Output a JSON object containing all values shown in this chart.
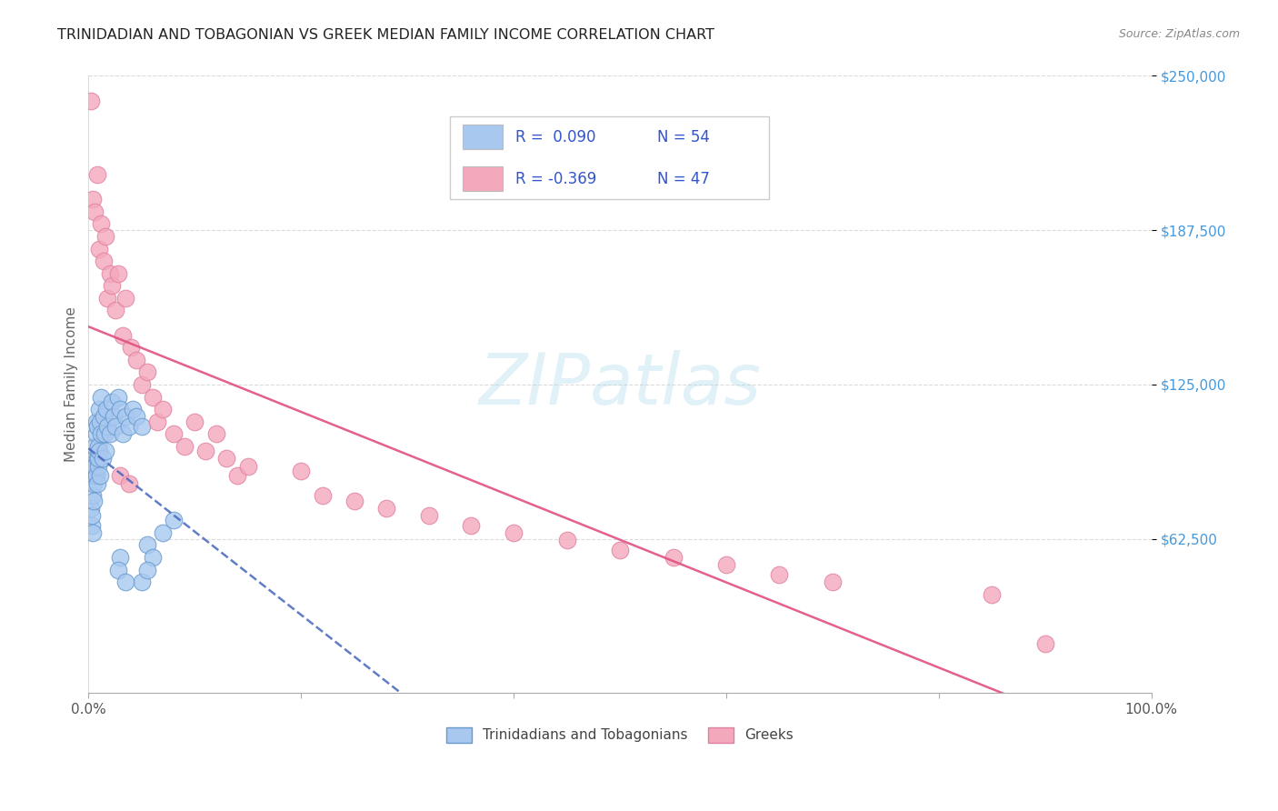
{
  "title": "TRINIDADIAN AND TOBAGONIAN VS GREEK MEDIAN FAMILY INCOME CORRELATION CHART",
  "source_text": "Source: ZipAtlas.com",
  "ylabel": "Median Family Income",
  "xlim": [
    0,
    1.0
  ],
  "ylim": [
    0,
    250000
  ],
  "ytick_values": [
    62500,
    125000,
    187500,
    250000
  ],
  "ytick_labels": [
    "$62,500",
    "$125,000",
    "$187,500",
    "$250,000"
  ],
  "grid_color": "#cccccc",
  "background_color": "#ffffff",
  "watermark": "ZIPatlas",
  "watermark_color": "#a8d8ea",
  "blue_color": "#a8c8f0",
  "blue_edge": "#6699cc",
  "blue_line": "#4466bb",
  "pink_color": "#f4a8bc",
  "pink_edge": "#e080a0",
  "pink_line": "#e05080",
  "legend_color": "#3355cc",
  "blue_R": "0.090",
  "blue_N": "54",
  "pink_R": "-0.369",
  "pink_N": "47",
  "blue_x": [
    0.002,
    0.003,
    0.003,
    0.004,
    0.004,
    0.005,
    0.005,
    0.005,
    0.006,
    0.006,
    0.006,
    0.006,
    0.007,
    0.007,
    0.007,
    0.008,
    0.008,
    0.008,
    0.009,
    0.009,
    0.009,
    0.01,
    0.01,
    0.011,
    0.011,
    0.012,
    0.012,
    0.013,
    0.014,
    0.015,
    0.016,
    0.017,
    0.018,
    0.02,
    0.022,
    0.024,
    0.025,
    0.028,
    0.03,
    0.032,
    0.035,
    0.038,
    0.042,
    0.045,
    0.05,
    0.055,
    0.06,
    0.07,
    0.08,
    0.05,
    0.055,
    0.03,
    0.028,
    0.035
  ],
  "blue_y": [
    75000,
    68000,
    72000,
    65000,
    80000,
    85000,
    78000,
    90000,
    95000,
    88000,
    100000,
    92000,
    105000,
    110000,
    88000,
    95000,
    108000,
    85000,
    92000,
    100000,
    95000,
    115000,
    98000,
    110000,
    88000,
    105000,
    120000,
    95000,
    112000,
    105000,
    98000,
    115000,
    108000,
    105000,
    118000,
    112000,
    108000,
    120000,
    115000,
    105000,
    112000,
    108000,
    115000,
    112000,
    108000,
    60000,
    55000,
    65000,
    70000,
    45000,
    50000,
    55000,
    50000,
    45000
  ],
  "pink_x": [
    0.002,
    0.004,
    0.006,
    0.008,
    0.01,
    0.012,
    0.014,
    0.016,
    0.018,
    0.02,
    0.022,
    0.025,
    0.028,
    0.032,
    0.035,
    0.04,
    0.045,
    0.05,
    0.055,
    0.06,
    0.065,
    0.07,
    0.08,
    0.09,
    0.1,
    0.11,
    0.12,
    0.13,
    0.14,
    0.15,
    0.03,
    0.038,
    0.2,
    0.22,
    0.25,
    0.28,
    0.32,
    0.36,
    0.4,
    0.45,
    0.5,
    0.55,
    0.6,
    0.65,
    0.7,
    0.85,
    0.9
  ],
  "pink_y": [
    240000,
    200000,
    195000,
    210000,
    180000,
    190000,
    175000,
    185000,
    160000,
    170000,
    165000,
    155000,
    170000,
    145000,
    160000,
    140000,
    135000,
    125000,
    130000,
    120000,
    110000,
    115000,
    105000,
    100000,
    110000,
    98000,
    105000,
    95000,
    88000,
    92000,
    88000,
    85000,
    90000,
    80000,
    78000,
    75000,
    72000,
    68000,
    65000,
    62000,
    58000,
    55000,
    52000,
    48000,
    45000,
    40000,
    20000
  ]
}
